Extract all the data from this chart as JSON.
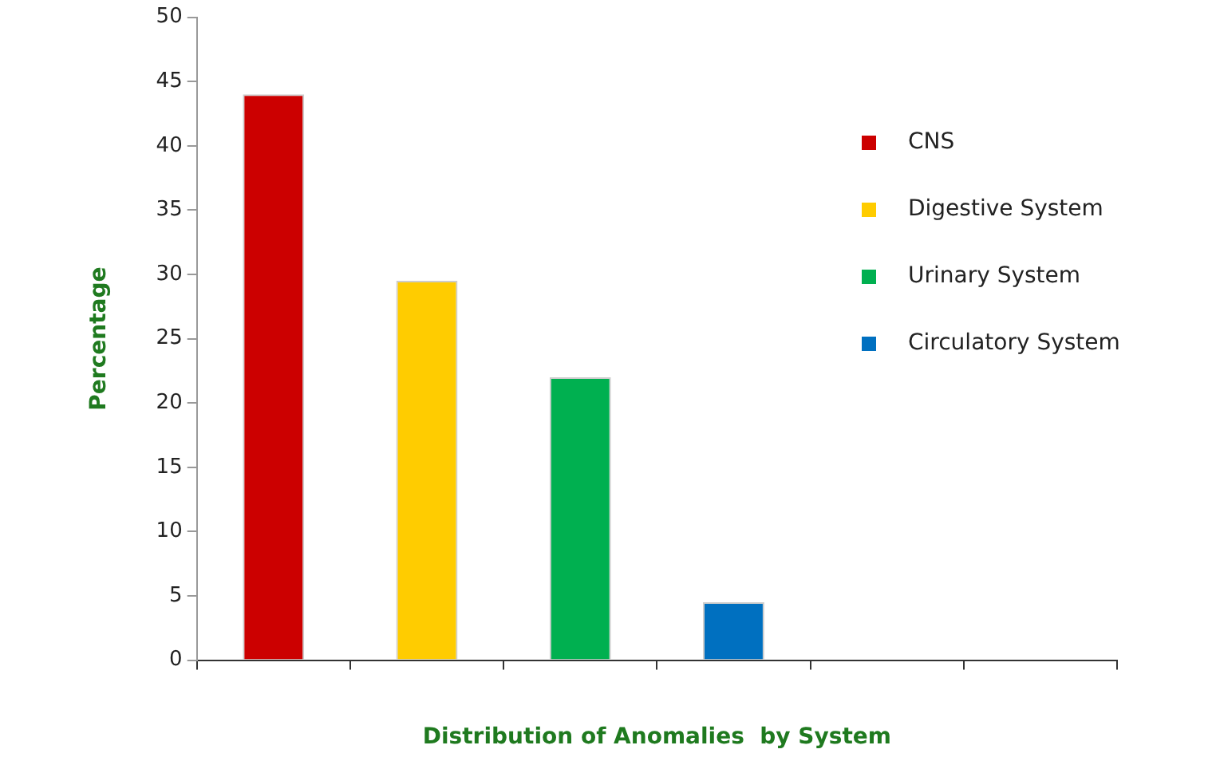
{
  "chart_data": {
    "type": "bar",
    "xlabel": "Distribution of Anomalies  by System",
    "ylabel": "Percentage",
    "categories": [
      null,
      null,
      null,
      null,
      null,
      null
    ],
    "series": [
      {
        "name": "CNS",
        "color": "#cc0000",
        "values": [
          44,
          null,
          null,
          null,
          null,
          null
        ]
      },
      {
        "name": "Digestive System",
        "color": "#ffcc00",
        "values": [
          null,
          29.5,
          null,
          null,
          null,
          null
        ]
      },
      {
        "name": "Urinary System",
        "color": "#00b050",
        "values": [
          null,
          null,
          22,
          null,
          null,
          null
        ]
      },
      {
        "name": "Circulatory System",
        "color": "#0070c0",
        "values": [
          null,
          null,
          null,
          4.5,
          null,
          null
        ]
      }
    ],
    "ylim": [
      0,
      50
    ],
    "yticks": [
      0,
      5,
      10,
      15,
      20,
      25,
      30,
      35,
      40,
      45,
      50
    ],
    "grid": false,
    "legend": "top right"
  }
}
